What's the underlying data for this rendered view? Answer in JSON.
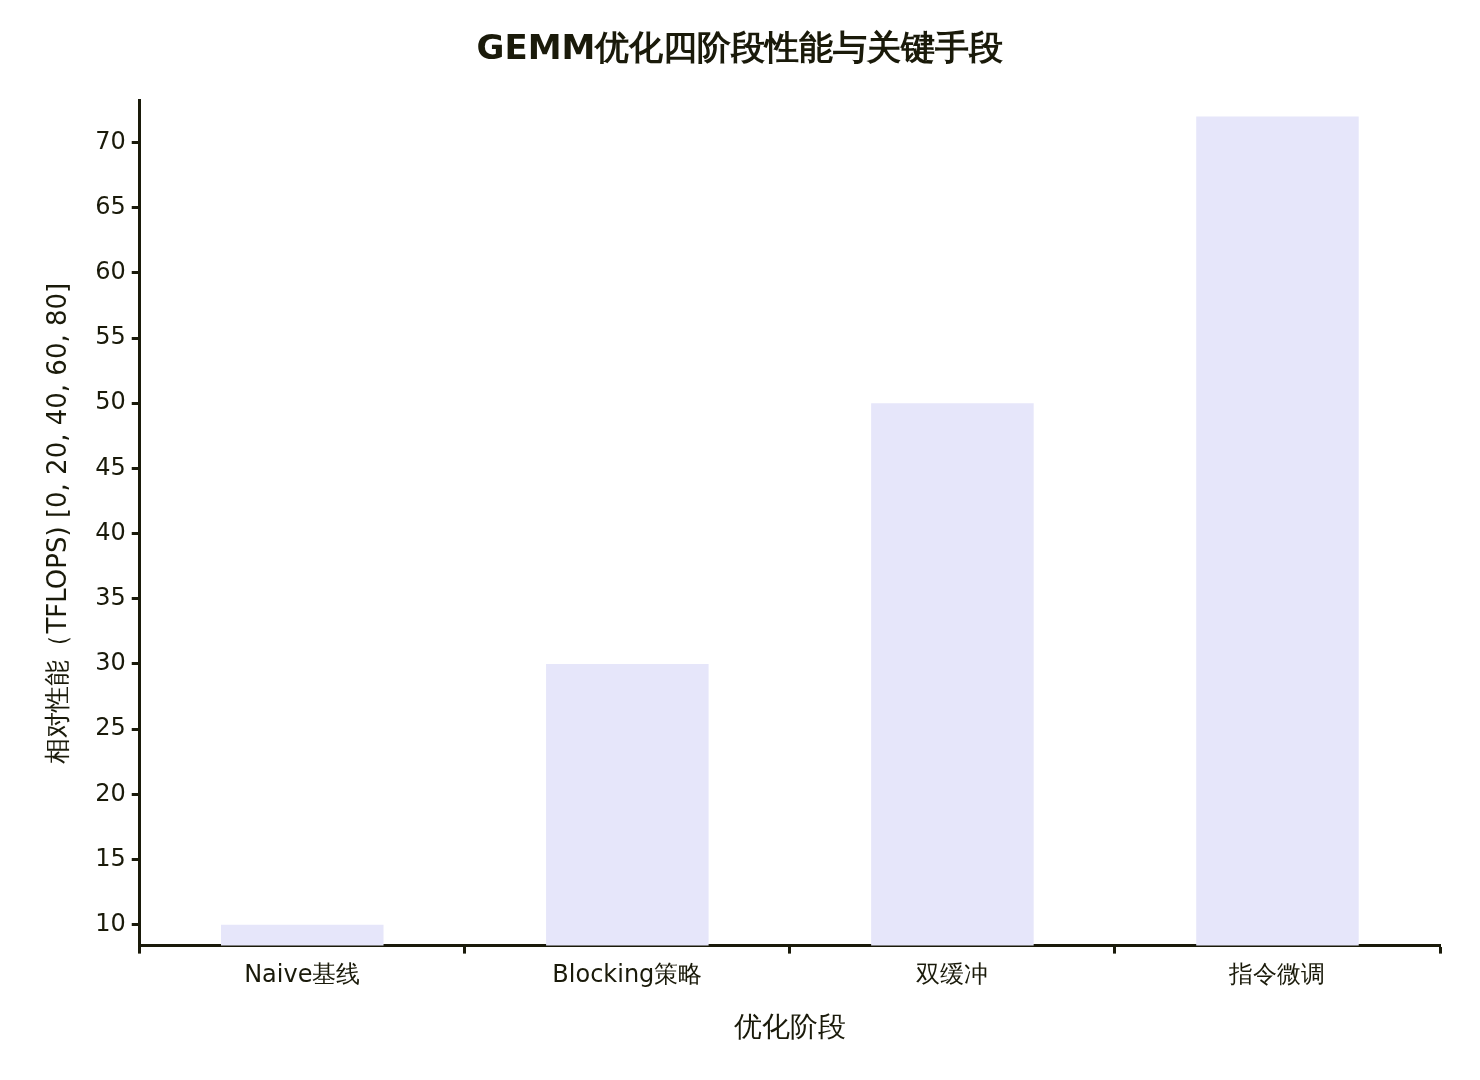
{
  "chart_data": {
    "type": "bar",
    "title": "GEMM优化四阶段性能与关键手段",
    "xlabel": "优化阶段",
    "ylabel": "相对性能（TFLOPS) [0, 20, 40, 60, 80]",
    "categories": [
      "Naive基线",
      "Blocking策略",
      "双缓冲",
      "指令微调"
    ],
    "values": [
      10,
      30,
      50,
      72
    ],
    "color": "#e6e6fa",
    "ylim": [
      8.4,
      73.2
    ],
    "yticks": [
      10,
      15,
      20,
      25,
      30,
      35,
      40,
      45,
      50,
      55,
      60,
      65,
      70
    ],
    "grid": false,
    "legend": false
  }
}
